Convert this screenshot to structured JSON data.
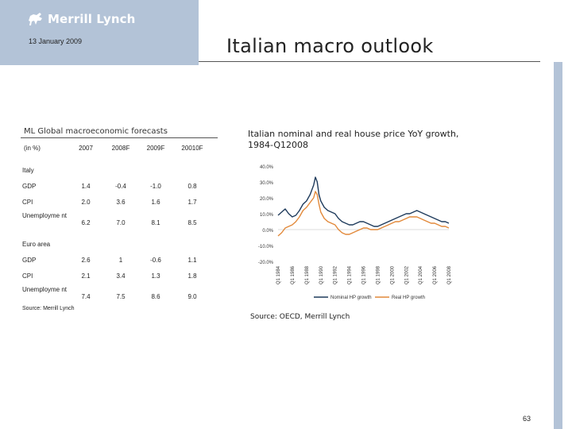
{
  "header": {
    "logo_text": "Merrill Lynch",
    "date": "13 January 2009",
    "title": "Italian macro outlook"
  },
  "colors": {
    "header_block": "#b3c3d7",
    "nominal_line": "#1f3b5c",
    "real_line": "#e2893a"
  },
  "icons": {
    "logo": "bull-icon"
  },
  "table": {
    "title": "ML Global macroeconomic forecasts",
    "columns": [
      "(in %)",
      "2007",
      "2008F",
      "2009F",
      "20010F"
    ],
    "sections": [
      {
        "name": "Italy",
        "rows": [
          {
            "label": "GDP",
            "values": [
              "1.4",
              "-0.4",
              "-1.0",
              "0.8"
            ]
          },
          {
            "label": "CPI",
            "values": [
              "2.0",
              "3.6",
              "1.6",
              "1.7"
            ]
          },
          {
            "label": "Unemployme nt",
            "values": [
              "6.2",
              "7.0",
              "8.1",
              "8.5"
            ]
          }
        ]
      },
      {
        "name": "Euro area",
        "rows": [
          {
            "label": "GDP",
            "values": [
              "2.6",
              "1",
              "-0.6",
              "1.1"
            ]
          },
          {
            "label": "CPI",
            "values": [
              "2.1",
              "3.4",
              "1.3",
              "1.8"
            ]
          },
          {
            "label": "Unemployme nt",
            "values": [
              "7.4",
              "7.5",
              "8.6",
              "9.0"
            ]
          }
        ]
      }
    ],
    "source": "Source: Merrill Lynch"
  },
  "chart_source": "Source: OECD, Merrill Lynch",
  "page_number": "63",
  "chart_data": {
    "type": "line",
    "title": "Italian nominal and real house price YoY growth, 1984-Q12008",
    "x_tick_labels": [
      "Q1 1984",
      "Q1 1986",
      "Q1 1988",
      "Q1 1990",
      "Q1 1992",
      "Q1 1994",
      "Q1 1996",
      "Q1 1998",
      "Q1 2000",
      "Q1 2002",
      "Q1 2004",
      "Q1 2006",
      "Q1 2008"
    ],
    "y_tick_labels": [
      "40.0%",
      "30.0%",
      "20.0%",
      "10.0%",
      "0.0%",
      "-10.0%",
      "-20.0%"
    ],
    "ylim": [
      -20,
      40
    ],
    "xlim": [
      1984,
      2008
    ],
    "legend_position": "bottom",
    "grid": false,
    "series": [
      {
        "name": "Nominal HP growth",
        "x": [
          1984,
          1984.5,
          1985,
          1985.5,
          1986,
          1986.5,
          1987,
          1987.5,
          1988,
          1988.5,
          1989,
          1989.25,
          1989.5,
          1989.75,
          1990,
          1990.5,
          1991,
          1991.5,
          1992,
          1992.5,
          1993,
          1993.5,
          1994,
          1994.5,
          1995,
          1995.5,
          1996,
          1996.5,
          1997,
          1997.5,
          1998,
          1998.5,
          1999,
          1999.5,
          2000,
          2000.5,
          2001,
          2001.5,
          2002,
          2002.5,
          2003,
          2003.5,
          2004,
          2004.5,
          2005,
          2005.5,
          2006,
          2006.5,
          2007,
          2007.5,
          2008
        ],
        "values": [
          9,
          11,
          13,
          10,
          8,
          9,
          12,
          16,
          18,
          22,
          28,
          33,
          30,
          22,
          18,
          14,
          12,
          11,
          10,
          7,
          5,
          4,
          3,
          3,
          4,
          5,
          5,
          4,
          3,
          2,
          2,
          3,
          4,
          5,
          6,
          7,
          8,
          9,
          10,
          10,
          11,
          12,
          11,
          10,
          9,
          8,
          7,
          6,
          5,
          5,
          4
        ]
      },
      {
        "name": "Real HP growth",
        "x": [
          1984,
          1984.5,
          1985,
          1985.5,
          1986,
          1986.5,
          1987,
          1987.5,
          1988,
          1988.5,
          1989,
          1989.25,
          1989.5,
          1989.75,
          1990,
          1990.5,
          1991,
          1991.5,
          1992,
          1992.5,
          1993,
          1993.5,
          1994,
          1994.5,
          1995,
          1995.5,
          1996,
          1996.5,
          1997,
          1997.5,
          1998,
          1998.5,
          1999,
          1999.5,
          2000,
          2000.5,
          2001,
          2001.5,
          2002,
          2002.5,
          2003,
          2003.5,
          2004,
          2004.5,
          2005,
          2005.5,
          2006,
          2006.5,
          2007,
          2007.5,
          2008
        ],
        "values": [
          -4,
          -2,
          1,
          2,
          3,
          5,
          8,
          12,
          14,
          17,
          20,
          24,
          22,
          16,
          11,
          7,
          5,
          4,
          3,
          0,
          -2,
          -3,
          -3,
          -2,
          -1,
          0,
          1,
          1,
          0,
          0,
          0,
          1,
          2,
          3,
          4,
          5,
          5,
          6,
          7,
          8,
          8,
          8,
          7,
          6,
          5,
          4,
          4,
          3,
          2,
          2,
          1
        ]
      }
    ]
  }
}
